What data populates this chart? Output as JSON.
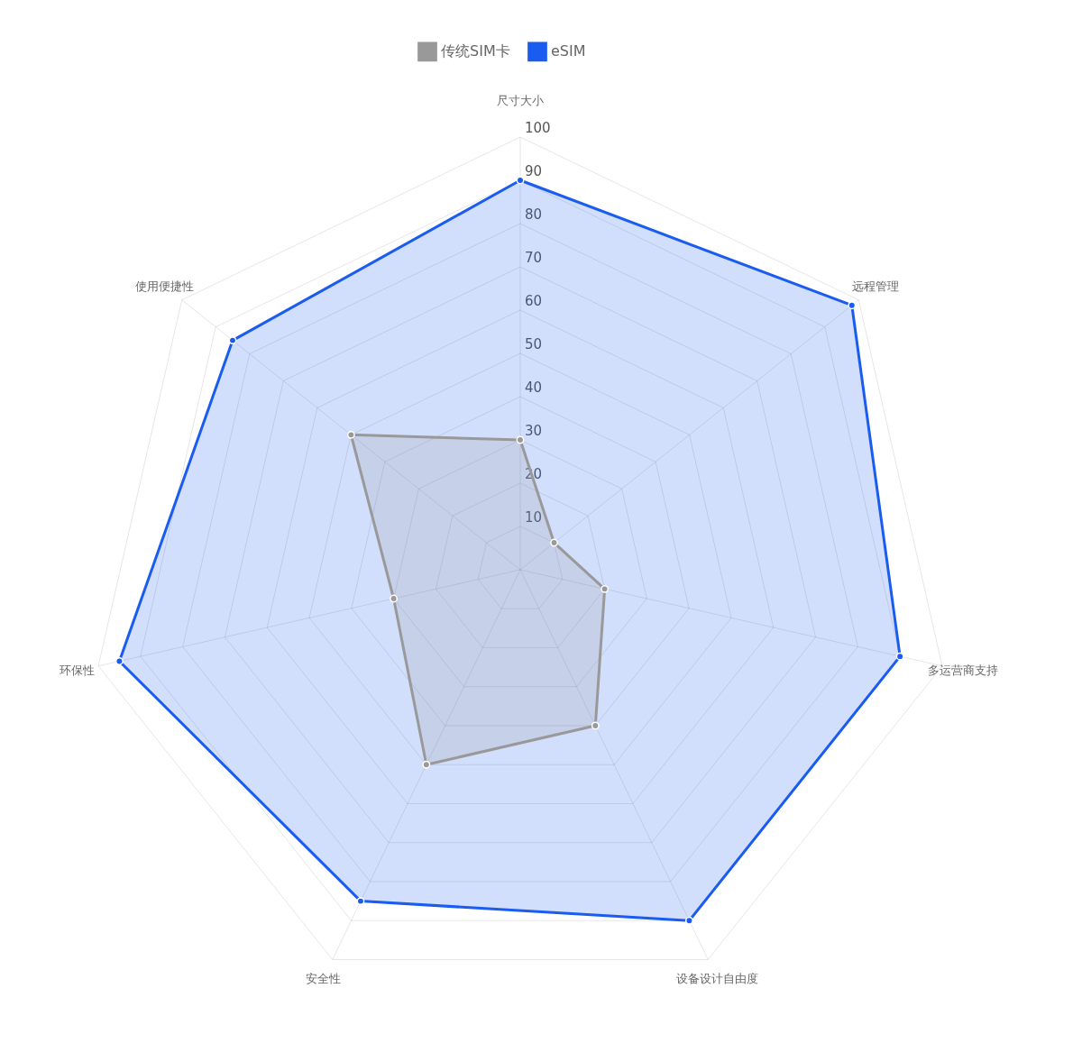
{
  "chart_data": {
    "type": "radar",
    "categories": [
      "尺寸大小",
      "远程管理",
      "多运营商支持",
      "设备设计自由度",
      "安全性",
      "环保性",
      "使用便捷性"
    ],
    "series": [
      {
        "name": "传统SIM卡",
        "color": "#999999",
        "values": [
          30,
          10,
          20,
          40,
          50,
          30,
          50
        ]
      },
      {
        "name": "eSIM",
        "color": "#1a5cf0",
        "values": [
          90,
          98,
          90,
          90,
          85,
          95,
          85
        ]
      }
    ],
    "ylim": [
      0,
      100
    ],
    "yticks": [
      10,
      20,
      30,
      40,
      50,
      60,
      70,
      80,
      90,
      100
    ],
    "grid": true,
    "legend": "top",
    "marker": "circle"
  }
}
